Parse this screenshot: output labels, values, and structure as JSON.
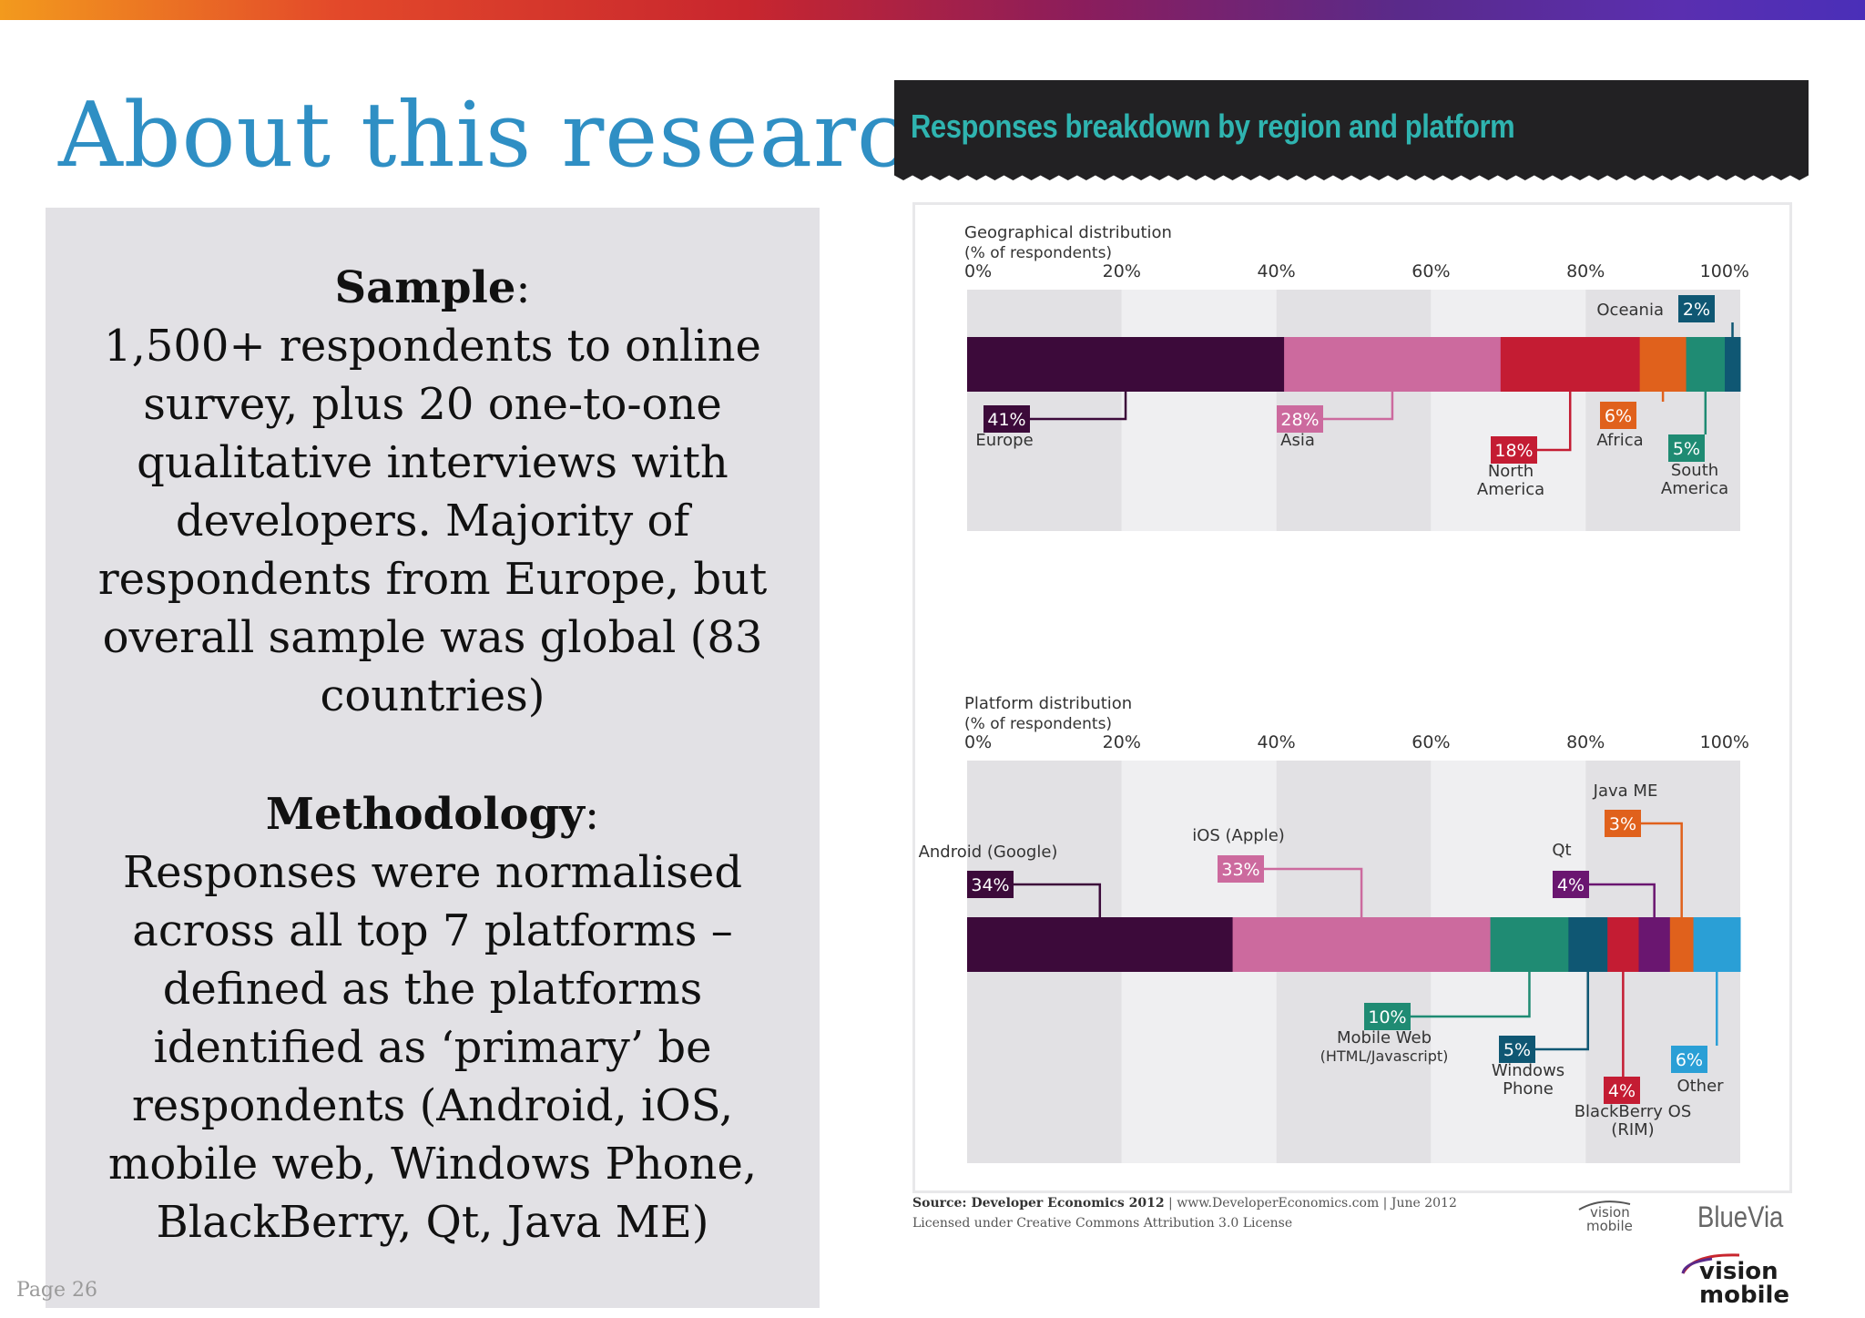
{
  "page": {
    "title": "About this research",
    "page_number": "Page 26"
  },
  "left_panel": {
    "sample_heading": "Sample",
    "sample_text": "1,500+ respondents to online survey, plus 20 one-to-one qualitative interviews with developers. Majority of respondents from Europe, but overall sample was global (83 countries)",
    "methodology_heading": "Methodology",
    "methodology_text": "Responses were normalised across all top 7 platforms – defined as the platforms identified as ‘primary’ be respondents (Android, iOS, mobile web, Windows Phone, BlackBerry, Qt, Java ME)"
  },
  "chart_header": {
    "title": "Responses breakdown by region and platform"
  },
  "chart_data": [
    {
      "type": "bar",
      "orientation": "horizontal-stacked",
      "title": "Geographical distribution",
      "subtitle": "(% of respondents)",
      "xlim": [
        0,
        100
      ],
      "ticks": [
        "0%",
        "20%",
        "40%",
        "60%",
        "80%",
        "100%"
      ],
      "series": [
        {
          "name": "Europe",
          "value": 41,
          "label": "41%",
          "color": "#3c0a3a"
        },
        {
          "name": "Asia",
          "value": 28,
          "label": "28%",
          "color": "#cc6a9e"
        },
        {
          "name": "North America",
          "value": 18,
          "label": "18%",
          "color": "#c41c33"
        },
        {
          "name": "Africa",
          "value": 6,
          "label": "6%",
          "color": "#e0611c"
        },
        {
          "name": "South America",
          "value": 5,
          "label": "5%",
          "color": "#1f8b73"
        },
        {
          "name": "Oceania",
          "value": 2,
          "label": "2%",
          "color": "#0f5773"
        }
      ]
    },
    {
      "type": "bar",
      "orientation": "horizontal-stacked",
      "title": "Platform distribution",
      "subtitle": "(% of respondents)",
      "xlim": [
        0,
        100
      ],
      "ticks": [
        "0%",
        "20%",
        "40%",
        "60%",
        "80%",
        "100%"
      ],
      "series": [
        {
          "name": "Android (Google)",
          "value": 34,
          "label": "34%",
          "color": "#3c0a3a"
        },
        {
          "name": "iOS (Apple)",
          "value": 33,
          "label": "33%",
          "color": "#cc6a9e"
        },
        {
          "name": "Mobile Web (HTML/Javascript)",
          "value": 10,
          "label": "10%",
          "color": "#1f8b73"
        },
        {
          "name": "Windows Phone",
          "value": 5,
          "label": "5%",
          "color": "#0f5773"
        },
        {
          "name": "BlackBerry OS (RIM)",
          "value": 4,
          "label": "4%",
          "color": "#c41c33"
        },
        {
          "name": "Qt",
          "value": 4,
          "label": "4%",
          "color": "#6a1670"
        },
        {
          "name": "Java ME",
          "value": 3,
          "label": "3%",
          "color": "#e0611c"
        },
        {
          "name": "Other",
          "value": 6,
          "label": "6%",
          "color": "#2a9fd6"
        }
      ]
    }
  ],
  "footer": {
    "source_bold": "Source: Developer Economics 2012",
    "source_rest": " | www.DeveloperEconomics.com | June 2012",
    "license": "Licensed under Creative Commons Attribution 3.0 License"
  },
  "logos": {
    "vision_mobile_top": "vision",
    "vision_mobile_bottom": "mobile",
    "bluevia": "BlueVia"
  }
}
